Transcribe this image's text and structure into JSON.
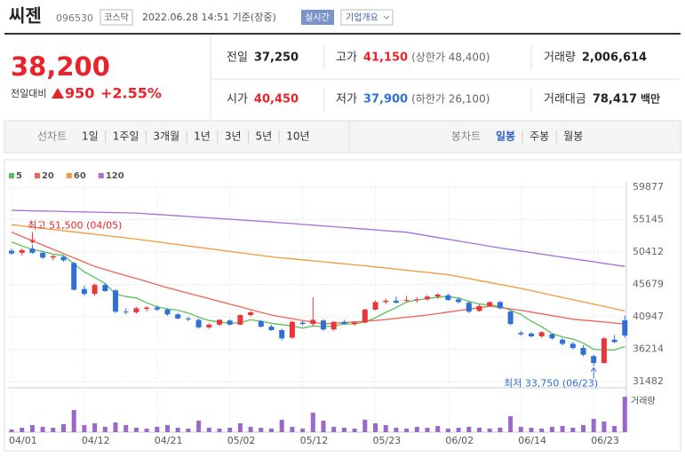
{
  "header": {
    "name": "씨젠",
    "code": "096530",
    "market": "코스닥",
    "timestamp": "2022.06.28 14:51 기준(장중)",
    "realtime": "실시간",
    "company": "기업개요"
  },
  "quote": {
    "price": "38,200",
    "change_label": "전일대비",
    "change": "950",
    "change_pct": "+2.55%",
    "stats": [
      {
        "label": "전일",
        "value": "37,250"
      },
      {
        "label": "고가",
        "value": "41,150",
        "note": "(상한가 48,400)"
      },
      {
        "label": "거래량",
        "value": "2,006,614"
      },
      {
        "label": "시가",
        "value": "40,450"
      },
      {
        "label": "저가",
        "value": "37,900",
        "note": "(하한가 26,100)"
      },
      {
        "label": "거래대금",
        "value": "78,417",
        "unit": "백만"
      }
    ]
  },
  "tabs": {
    "line_label": "선차트",
    "line": [
      "1일",
      "1주일",
      "3개월",
      "1년",
      "3년",
      "5년",
      "10년"
    ],
    "candle_label": "봉차트",
    "candle": [
      "일봉",
      "주봉",
      "월봉"
    ]
  },
  "chart_data": {
    "type": "candlestick",
    "categories": [
      "04/01",
      null,
      null,
      null,
      null,
      null,
      null,
      "04/12",
      null,
      null,
      null,
      null,
      null,
      null,
      "04/21",
      null,
      null,
      null,
      null,
      null,
      null,
      "05/02",
      null,
      null,
      null,
      null,
      null,
      null,
      "05/12",
      null,
      null,
      null,
      null,
      null,
      null,
      "05/23",
      null,
      null,
      null,
      null,
      null,
      null,
      "06/02",
      null,
      null,
      null,
      null,
      null,
      null,
      "06/14",
      null,
      null,
      null,
      null,
      null,
      null,
      "06/23",
      null,
      null,
      null
    ],
    "open": [
      50600,
      50300,
      50900,
      50300,
      49600,
      49700,
      48800,
      45000,
      44300,
      45600,
      44800,
      41700,
      41600,
      42100,
      42300,
      42000,
      41300,
      40700,
      40500,
      39400,
      39800,
      40400,
      39800,
      41200,
      40300,
      39500,
      39000,
      37900,
      40100,
      39900,
      40400,
      39100,
      40200,
      39900,
      40100,
      42000,
      43100,
      43300,
      43300,
      43400,
      43500,
      43900,
      44100,
      43500,
      43000,
      41800,
      42500,
      43100,
      41700,
      38600,
      38500,
      38100,
      38400,
      37600,
      37000,
      36400,
      35200,
      34200,
      37600,
      40450
    ],
    "high": [
      50900,
      50900,
      51500,
      50500,
      50000,
      49900,
      49000,
      45500,
      45800,
      45900,
      45000,
      42200,
      42400,
      42500,
      42600,
      42200,
      41500,
      41000,
      40700,
      40000,
      40600,
      40600,
      41300,
      41800,
      40500,
      39800,
      39200,
      40400,
      40400,
      43800,
      40600,
      40300,
      40500,
      40300,
      42100,
      43300,
      43600,
      43900,
      44000,
      43800,
      44100,
      44400,
      44300,
      43800,
      43200,
      42700,
      43200,
      43300,
      41900,
      38900,
      38700,
      38800,
      38500,
      37800,
      37300,
      36800,
      35400,
      38000,
      38300,
      41150
    ],
    "low": [
      50000,
      49900,
      50100,
      49400,
      49200,
      49000,
      44800,
      44000,
      44000,
      44600,
      41500,
      41300,
      41400,
      41700,
      41800,
      41100,
      40600,
      40300,
      39200,
      39200,
      39600,
      39700,
      39700,
      41000,
      39400,
      38900,
      37500,
      37700,
      39700,
      39500,
      38900,
      38900,
      39800,
      39600,
      40000,
      41900,
      42800,
      42900,
      43100,
      43000,
      43300,
      43600,
      43300,
      42900,
      41500,
      41700,
      42400,
      42000,
      39700,
      38200,
      37900,
      37900,
      37600,
      36800,
      36200,
      35200,
      33750,
      34100,
      37100,
      37900
    ],
    "close": [
      50200,
      50700,
      50300,
      49600,
      49800,
      49200,
      44900,
      44300,
      45600,
      44700,
      41700,
      41600,
      42200,
      42300,
      42000,
      41300,
      40700,
      40600,
      39400,
      39800,
      40500,
      39800,
      41200,
      41600,
      39500,
      39000,
      37800,
      40200,
      39900,
      40500,
      39100,
      40200,
      39900,
      40100,
      42000,
      43100,
      43300,
      43000,
      43400,
      43500,
      43900,
      44200,
      43400,
      43100,
      41700,
      42500,
      43100,
      42200,
      39900,
      38400,
      38100,
      38700,
      37800,
      37000,
      36400,
      35400,
      34200,
      37800,
      37250,
      38200
    ],
    "up_color": "#e8363c",
    "down_color": "#2f6fd6",
    "ylim": [
      31482,
      59877
    ],
    "yticks": [
      59877,
      55145,
      50412,
      45679,
      40947,
      36214,
      31482
    ],
    "moving_averages": [
      {
        "name": "5",
        "color": "#5cbf5c",
        "values": [
          51900,
          51300,
          50800,
          50500,
          50100,
          49900,
          48700,
          47500,
          46700,
          45800,
          44300,
          43900,
          43700,
          43000,
          42400,
          42100,
          41900,
          41500,
          40900,
          40400,
          40200,
          40000,
          40100,
          40500,
          40300,
          40000,
          39800,
          39600,
          39300,
          39600,
          39500,
          39600,
          39900,
          39900,
          40200,
          40800,
          41600,
          42300,
          43100,
          43400,
          43600,
          43800,
          43900,
          43700,
          43200,
          42800,
          42700,
          42500,
          41900,
          41300,
          40300,
          39500,
          38500,
          38000,
          37700,
          37100,
          36200,
          36100,
          36100,
          36600
        ]
      },
      {
        "name": "20",
        "color": "#f06458",
        "values": [
          53300,
          52680,
          52050,
          51430,
          50800,
          50180,
          49550,
          48930,
          48300,
          47860,
          47410,
          46970,
          46530,
          46090,
          45640,
          45200,
          44800,
          44400,
          44000,
          43600,
          43200,
          42800,
          42400,
          42000,
          41600,
          41200,
          40940,
          40680,
          40420,
          40160,
          39900,
          40000,
          40100,
          40200,
          40300,
          40400,
          40560,
          40720,
          40880,
          41040,
          41200,
          41420,
          41630,
          41850,
          42070,
          42280,
          42500,
          42300,
          42100,
          41900,
          41640,
          41380,
          41120,
          40860,
          40600,
          40460,
          40320,
          40180,
          40040,
          39900
        ]
      },
      {
        "name": "60",
        "color": "#f39a3c",
        "values": [
          54400,
          54230,
          54050,
          53880,
          53700,
          53530,
          53350,
          53180,
          53000,
          52830,
          52650,
          52480,
          52300,
          52100,
          51900,
          51700,
          51500,
          51300,
          51100,
          50900,
          50700,
          50500,
          50300,
          50100,
          49900,
          49700,
          49560,
          49410,
          49270,
          49120,
          48980,
          48830,
          48690,
          48540,
          48400,
          48240,
          48080,
          47910,
          47750,
          47590,
          47430,
          47260,
          47100,
          46810,
          46530,
          46240,
          45960,
          45670,
          45390,
          45100,
          44770,
          44440,
          44110,
          43780,
          43450,
          43120,
          42790,
          42460,
          42130,
          41800
        ]
      },
      {
        "name": "120",
        "color": "#a46fd6",
        "values": [
          56500,
          56470,
          56430,
          56400,
          56370,
          56330,
          56300,
          56270,
          56230,
          56200,
          56170,
          56130,
          56100,
          56000,
          55900,
          55800,
          55700,
          55600,
          55500,
          55400,
          55300,
          55200,
          55100,
          55000,
          54900,
          54800,
          54680,
          54570,
          54450,
          54340,
          54220,
          54110,
          53990,
          53880,
          53760,
          53650,
          53530,
          53420,
          53300,
          53040,
          52790,
          52530,
          52280,
          52020,
          51770,
          51510,
          51260,
          51000,
          50780,
          50550,
          50330,
          50100,
          49880,
          49650,
          49430,
          49200,
          48980,
          48750,
          48530,
          48300
        ]
      }
    ],
    "volume": {
      "label": "거래량",
      "color": "#9b67cc",
      "values": [
        150000,
        250000,
        400000,
        300000,
        250000,
        450000,
        1250000,
        400000,
        500000,
        300000,
        550000,
        400000,
        250000,
        200000,
        300000,
        400000,
        250000,
        200000,
        650000,
        250000,
        200000,
        250000,
        500000,
        300000,
        250000,
        200000,
        700000,
        300000,
        200000,
        1100000,
        650000,
        300000,
        250000,
        200000,
        700000,
        500000,
        400000,
        250000,
        200000,
        300000,
        250000,
        350000,
        200000,
        250000,
        300000,
        250000,
        200000,
        250000,
        900000,
        300000,
        250000,
        200000,
        300000,
        350000,
        250000,
        400000,
        750000,
        600000,
        350000,
        2006614
      ]
    },
    "annotations": {
      "high": "최고 51,500 (04/05)",
      "low": "최저 33,750 (06/23)"
    }
  }
}
